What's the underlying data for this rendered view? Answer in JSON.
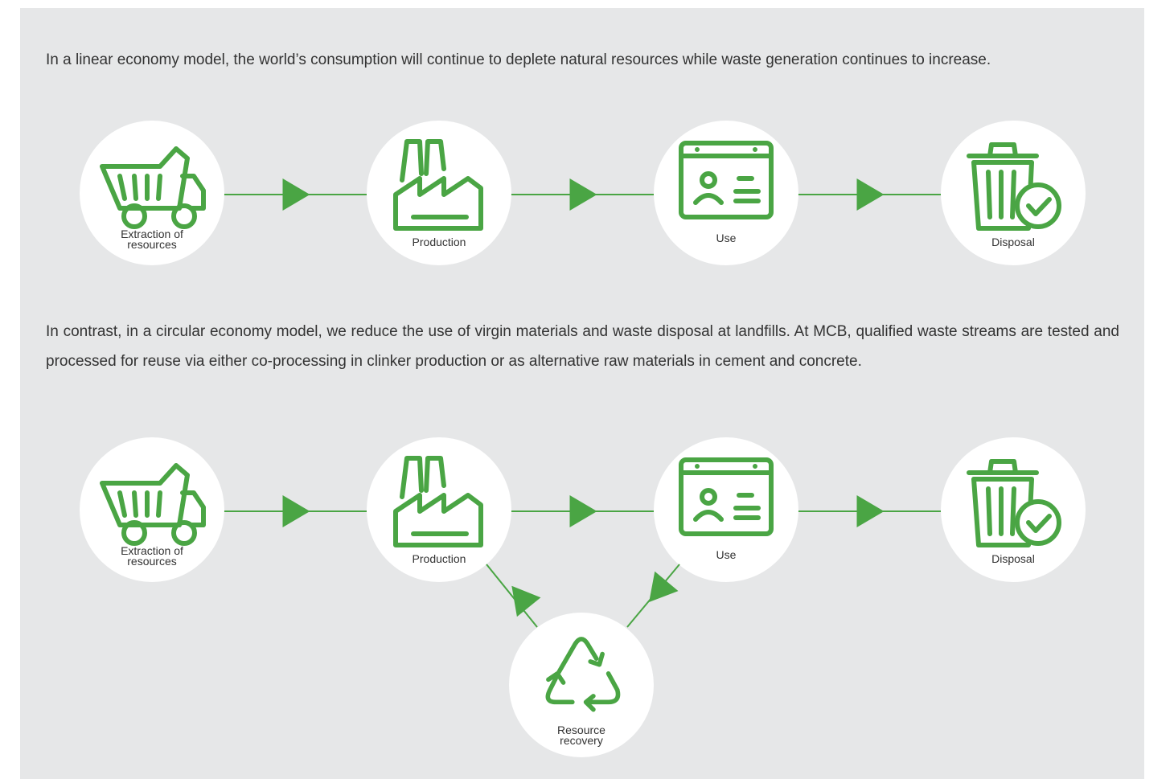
{
  "intro": "In a linear economy model, the world’s consumption will continue to deplete natural resources while waste generation continues to increase.",
  "linear": {
    "nodes": [
      {
        "label": "Extraction of resources"
      },
      {
        "label": "Production"
      },
      {
        "label": "Use"
      },
      {
        "label": "Disposal"
      }
    ]
  },
  "contrast": "In contrast, in a circular economy model, we reduce the use of virgin materials and waste disposal at landfills. At MCB, qualified waste streams are tested and processed for reuse via either co-processing in clinker production or as alternative raw materials in cement and concrete.",
  "circular": {
    "nodes": [
      {
        "label": "Extraction of resources"
      },
      {
        "label": "Production"
      },
      {
        "label": "Use"
      },
      {
        "label": "Disposal"
      }
    ],
    "recovery": {
      "label": "Resource recovery"
    }
  }
}
